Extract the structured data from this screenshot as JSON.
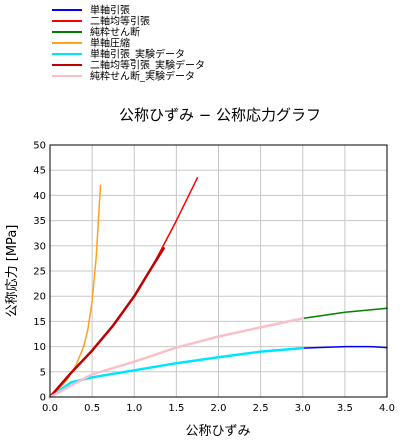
{
  "chart_data": {
    "type": "line",
    "title": "公称ひずみ − 公称応力グラフ",
    "xlabel": "公称ひずみ",
    "ylabel": "公称応力 [MPa]",
    "xlim": [
      0,
      4
    ],
    "ylim": [
      0,
      50
    ],
    "xticks": [
      "0.0",
      "0.5",
      "1.0",
      "1.5",
      "2.0",
      "2.5",
      "3.0",
      "3.5",
      "4.0"
    ],
    "yticks": [
      "0",
      "5",
      "10",
      "15",
      "20",
      "25",
      "30",
      "35",
      "40",
      "45",
      "50"
    ],
    "grid": true,
    "legend_position": "top-left, above plot",
    "series": [
      {
        "name": "単軸引張",
        "color": "#0000ff",
        "width": 1.5,
        "x": [
          0,
          0.25,
          0.5,
          1.0,
          1.5,
          2.0,
          2.5,
          3.0,
          3.5,
          3.8,
          4.0
        ],
        "y": [
          0,
          2.9,
          3.9,
          5.3,
          6.7,
          7.9,
          9.0,
          9.7,
          10.0,
          10.0,
          9.8
        ]
      },
      {
        "name": "二軸均等引張",
        "color": "#ff0000",
        "width": 1.5,
        "x": [
          0,
          0.25,
          0.5,
          0.75,
          1.0,
          1.25,
          1.5,
          1.75
        ],
        "y": [
          0,
          4.8,
          9.2,
          14.2,
          20.0,
          27.0,
          35.0,
          43.5
        ]
      },
      {
        "name": "純粋せん断",
        "color": "#008000",
        "width": 1.5,
        "x": [
          0,
          0.5,
          1.0,
          1.5,
          2.0,
          2.5,
          3.0,
          3.5,
          4.0
        ],
        "y": [
          0,
          4.5,
          7.0,
          9.8,
          12.0,
          13.8,
          15.6,
          16.8,
          17.6
        ]
      },
      {
        "name": "単軸圧縮",
        "color": "#ffa020",
        "width": 1.5,
        "x": [
          0,
          0.1,
          0.2,
          0.3,
          0.4,
          0.45,
          0.5,
          0.55,
          0.6
        ],
        "y": [
          0,
          1.5,
          3.4,
          6.0,
          10.0,
          13.5,
          19.0,
          28.0,
          42.0
        ]
      },
      {
        "name": "単軸引張_実験データ",
        "color": "#00e5ff",
        "width": 2.5,
        "x": [
          0,
          0.25,
          0.5,
          1.0,
          1.5,
          2.0,
          2.5,
          3.0
        ],
        "y": [
          0,
          2.9,
          3.9,
          5.3,
          6.7,
          7.9,
          9.0,
          9.7
        ]
      },
      {
        "name": "二軸均等引張_実験データ",
        "color": "#c00000",
        "width": 2.5,
        "x": [
          0,
          0.25,
          0.5,
          0.75,
          1.0,
          1.2,
          1.35
        ],
        "y": [
          0,
          4.8,
          9.2,
          14.2,
          20.0,
          25.5,
          29.5
        ]
      },
      {
        "name": "純粋せん断_実験データ",
        "color": "#f8c0c8",
        "width": 2.5,
        "x": [
          0,
          0.5,
          1.0,
          1.5,
          2.0,
          2.5,
          3.0
        ],
        "y": [
          0,
          4.5,
          7.0,
          9.8,
          12.0,
          13.8,
          15.6
        ]
      }
    ]
  }
}
